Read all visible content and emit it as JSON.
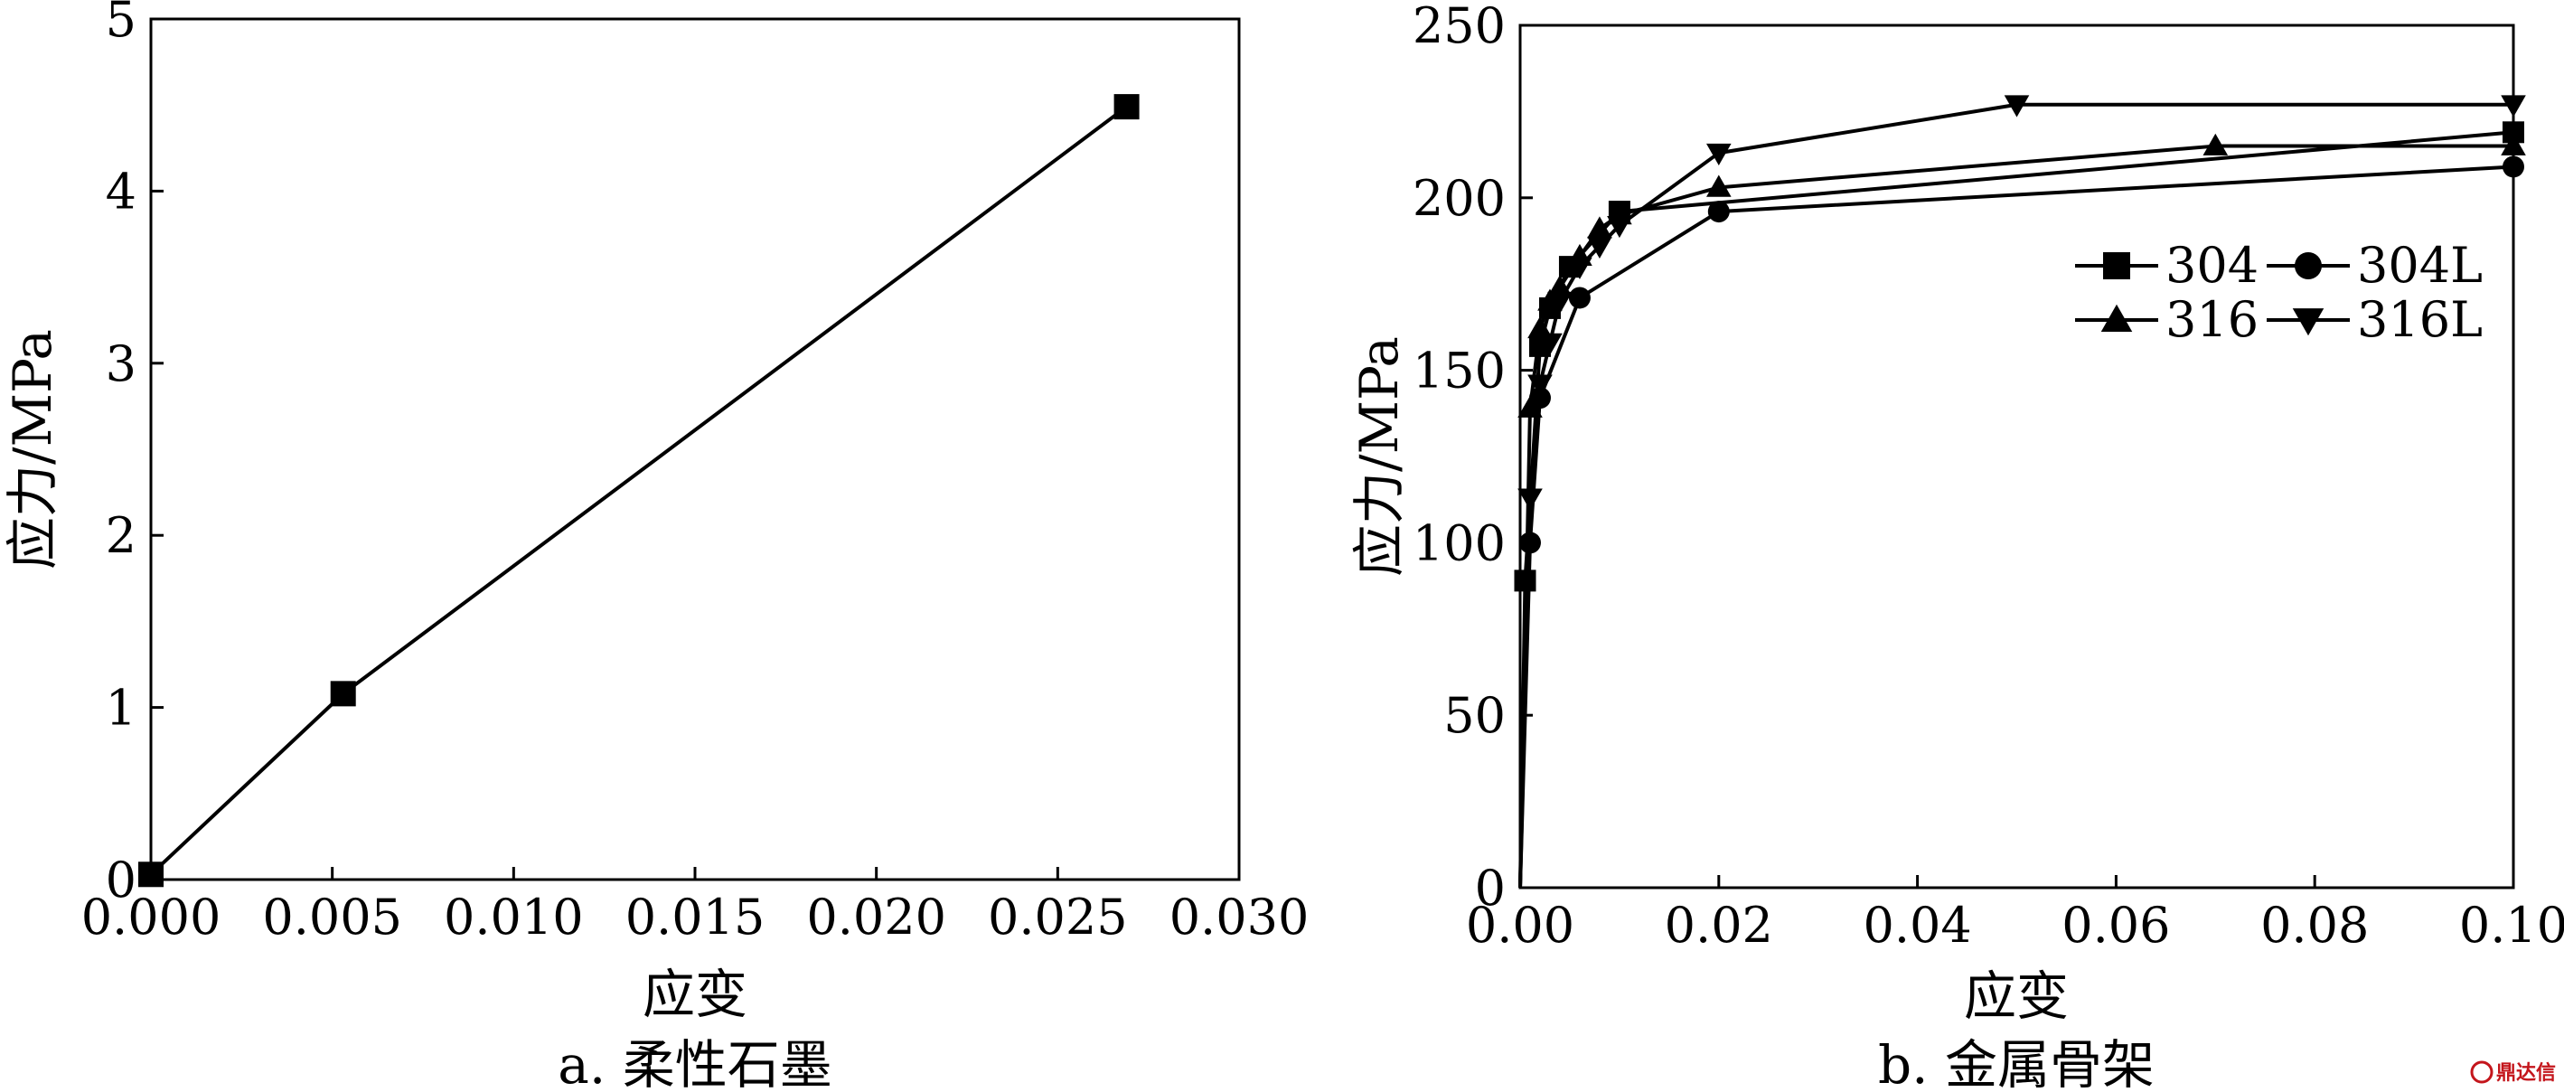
{
  "chart_data": [
    {
      "type": "line",
      "caption": "a. 柔性石墨",
      "xlabel": "应变",
      "ylabel": "应力/MPa",
      "xlim": [
        0,
        0.03
      ],
      "ylim": [
        0,
        5
      ],
      "xticks": [
        "0.000",
        "0.005",
        "0.010",
        "0.015",
        "0.020",
        "0.025",
        "0.030"
      ],
      "yticks": [
        "0",
        "1",
        "2",
        "3",
        "4",
        "5"
      ],
      "series": [
        {
          "marker": "square",
          "x": [
            0.0,
            0.0053,
            0.0269
          ],
          "y": [
            0.03,
            1.08,
            4.49
          ]
        }
      ]
    },
    {
      "type": "line",
      "caption": "b. 金属骨架",
      "xlabel": "应变",
      "ylabel": "应力/MPa",
      "xlim": [
        0,
        0.1
      ],
      "ylim": [
        0,
        250
      ],
      "xticks": [
        "0.00",
        "0.02",
        "0.04",
        "0.06",
        "0.08",
        "0.10"
      ],
      "yticks": [
        "0",
        "50",
        "100",
        "150",
        "200",
        "250"
      ],
      "legend_position": "upper-right",
      "series": [
        {
          "name": "304",
          "marker": "square",
          "x": [
            0,
            0.0005,
            0.002,
            0.003,
            0.005,
            0.01,
            0.1
          ],
          "y": [
            0,
            89,
            157,
            168,
            180,
            196,
            219
          ]
        },
        {
          "name": "304L",
          "marker": "circle",
          "x": [
            0,
            0.001,
            0.002,
            0.006,
            0.02,
            0.1
          ],
          "y": [
            0,
            100,
            142,
            171,
            196,
            209
          ]
        },
        {
          "name": "316",
          "marker": "triangle-up",
          "x": [
            0,
            0.001,
            0.002,
            0.003,
            0.004,
            0.006,
            0.008,
            0.01,
            0.02,
            0.07,
            0.1
          ],
          "y": [
            0,
            139,
            162,
            170,
            174,
            183,
            191,
            195,
            203,
            215,
            215
          ]
        },
        {
          "name": "316L",
          "marker": "triangle-down",
          "x": [
            0,
            0.001,
            0.002,
            0.003,
            0.004,
            0.006,
            0.008,
            0.01,
            0.02,
            0.05,
            0.1
          ],
          "y": [
            0,
            113,
            146,
            158,
            170,
            180,
            186,
            192,
            213,
            227,
            227
          ]
        }
      ]
    }
  ],
  "watermark": {
    "logo_text": "鼎达信"
  }
}
